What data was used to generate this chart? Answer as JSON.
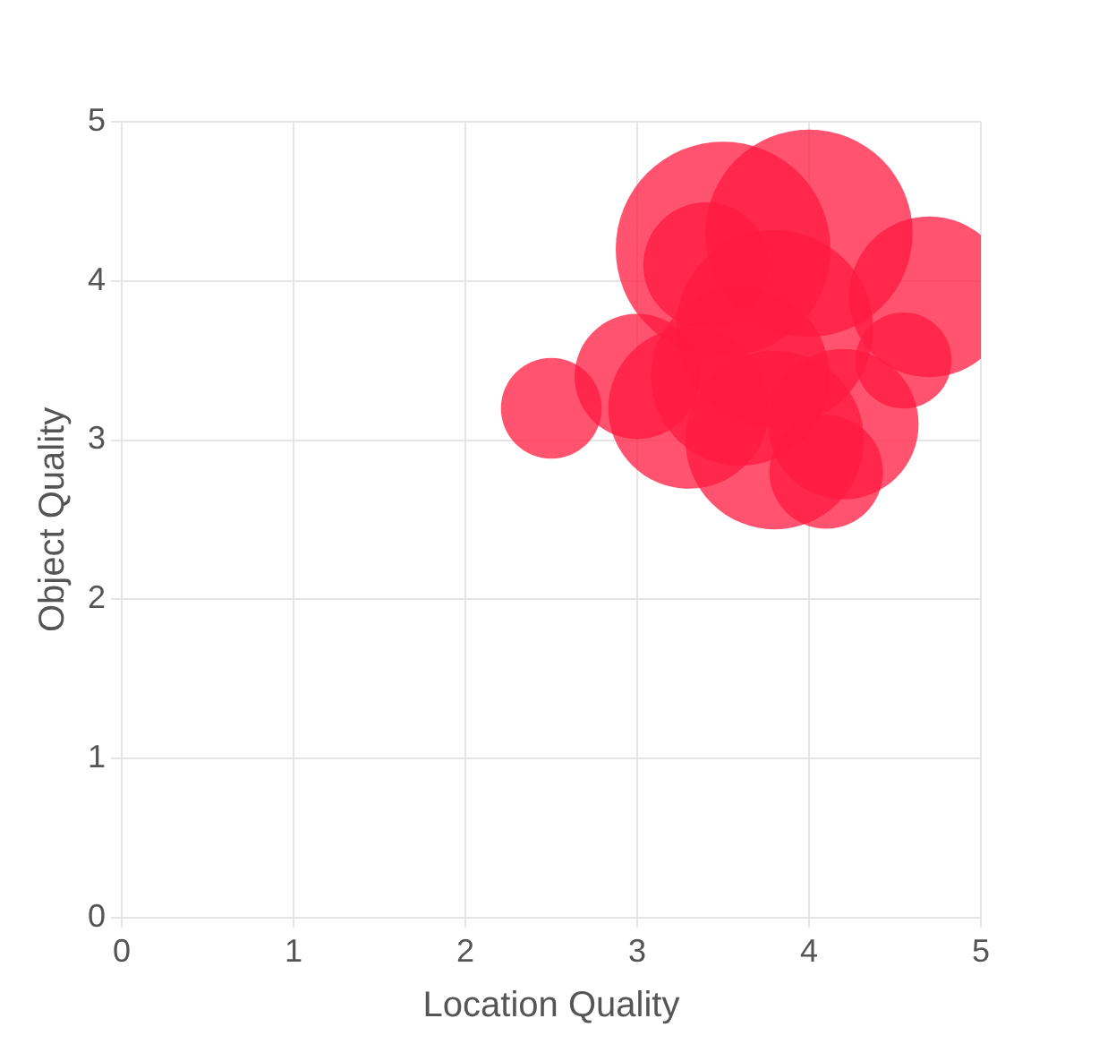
{
  "chart_data": {
    "type": "bubble",
    "xlabel": "Location Quality",
    "ylabel": "Object Quality",
    "xlim": [
      0,
      5
    ],
    "xticks": [
      0,
      1,
      2,
      3,
      4,
      5
    ],
    "ylim": [
      0,
      5
    ],
    "yticks": [
      0,
      1,
      2,
      3,
      4,
      5
    ],
    "grid": true,
    "legend": false,
    "series": [
      {
        "color": "#ff1a40",
        "x": [
          2.5,
          3.5,
          4.0,
          4.7,
          3.4,
          4.55,
          3.8,
          4.1,
          3.0,
          3.3,
          3.8,
          4.2,
          3.6
        ],
        "values": [
          3.2,
          4.2,
          4.3,
          3.9,
          4.1,
          3.5,
          3.0,
          2.8,
          3.4,
          3.2,
          3.7,
          3.1,
          3.4
        ],
        "sizes": [
          0.22,
          1,
          0.93,
          0.56,
          0.34,
          0.2,
          0.69,
          0.28,
          0.34,
          0.56,
          0.84,
          0.49,
          0.69
        ]
      }
    ]
  }
}
